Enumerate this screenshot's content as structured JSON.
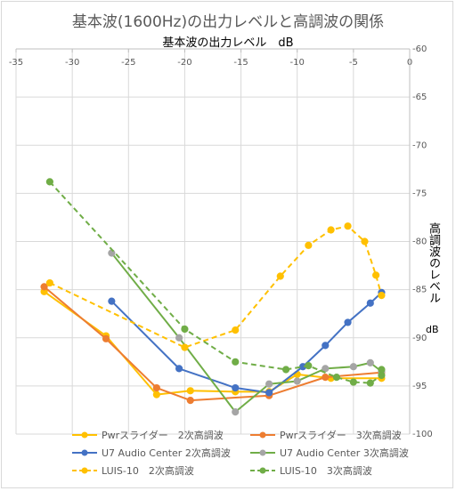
{
  "chart_data": {
    "type": "line",
    "title": "基本波(1600Hz)の出力レベルと高調波の関係",
    "xlabel": "基本波の出力レベル　dB",
    "ylabel": "高調波のレベル",
    "yunit": "dB",
    "xlim": [
      -35,
      0
    ],
    "ylim": [
      -100,
      -60
    ],
    "x_reversed": true,
    "x_axis_position": "top",
    "y_axis_position": "right",
    "x_ticks": [
      "-35",
      "-30",
      "-25",
      "-20",
      "-15",
      "-10",
      "-5",
      "0"
    ],
    "y_ticks": [
      "-60",
      "-65",
      "-70",
      "-75",
      "-80",
      "-85",
      "-90",
      "-95",
      "-100"
    ],
    "grid": true,
    "legend_position": "bottom",
    "series": [
      {
        "name": "Pwrスライダー　2次高調波",
        "color": "#FFC000",
        "dashed": false,
        "points": [
          [
            -32.5,
            -85.2
          ],
          [
            -27,
            -89.8
          ],
          [
            -22.5,
            -95.9
          ],
          [
            -19.5,
            -95.5
          ],
          [
            -15.5,
            -95.6
          ],
          [
            -12.5,
            -95.6
          ],
          [
            -10,
            -93.8
          ],
          [
            -7,
            -94.2
          ],
          [
            -2.5,
            -94.2
          ]
        ]
      },
      {
        "name": "Pwrスライダー　3次高調波",
        "color": "#ED7D31",
        "dashed": false,
        "points": [
          [
            -32.5,
            -84.7
          ],
          [
            -27,
            -90.1
          ],
          [
            -22.5,
            -95.2
          ],
          [
            -19.5,
            -96.5
          ],
          [
            -12.5,
            -96
          ],
          [
            -7.5,
            -94.1
          ],
          [
            -2.5,
            -93.6
          ]
        ]
      },
      {
        "name": "U7 Audio Center 2次高調波",
        "color": "#4472C4",
        "dashed": false,
        "points": [
          [
            -26.5,
            -86.2
          ],
          [
            -20.5,
            -93.2
          ],
          [
            -15.5,
            -95.2
          ],
          [
            -12.5,
            -95.7
          ],
          [
            -9.5,
            -93
          ],
          [
            -7.5,
            -90.8
          ],
          [
            -5.5,
            -88.4
          ],
          [
            -3.5,
            -86.4
          ],
          [
            -2.5,
            -85.3
          ]
        ]
      },
      {
        "name": "U7 Audio Center 3次高調波",
        "color": "#70AD47",
        "dashed": false,
        "marker_color": "#A5A5A5",
        "points": [
          [
            -26.5,
            -81.2
          ],
          [
            -20.5,
            -90
          ],
          [
            -15.5,
            -97.7
          ],
          [
            -12.5,
            -94.8
          ],
          [
            -10,
            -94.5
          ],
          [
            -7.5,
            -93.2
          ],
          [
            -5,
            -93
          ],
          [
            -3.5,
            -92.6
          ],
          [
            -2.5,
            -93.5
          ]
        ]
      },
      {
        "name": "LUIS-10　2次高調波",
        "color": "#FFC000",
        "dashed": true,
        "points": [
          [
            -32,
            -84.3
          ],
          [
            -20,
            -91
          ],
          [
            -15.5,
            -89.2
          ],
          [
            -11.5,
            -83.6
          ],
          [
            -9,
            -80.4
          ],
          [
            -7,
            -78.8
          ],
          [
            -5.5,
            -78.4
          ],
          [
            -4,
            -80
          ],
          [
            -3,
            -83.5
          ],
          [
            -2.5,
            -85.6
          ]
        ]
      },
      {
        "name": "LUIS-10　3次高調波",
        "color": "#70AD47",
        "dashed": true,
        "points": [
          [
            -32,
            -73.8
          ],
          [
            -20,
            -89.1
          ],
          [
            -15.5,
            -92.5
          ],
          [
            -11,
            -93.3
          ],
          [
            -9,
            -92.9
          ],
          [
            -6.5,
            -94.1
          ],
          [
            -5,
            -94.6
          ],
          [
            -3.5,
            -94.7
          ],
          [
            -2.5,
            -93.9
          ],
          [
            -2.5,
            -93.3
          ]
        ]
      }
    ]
  }
}
